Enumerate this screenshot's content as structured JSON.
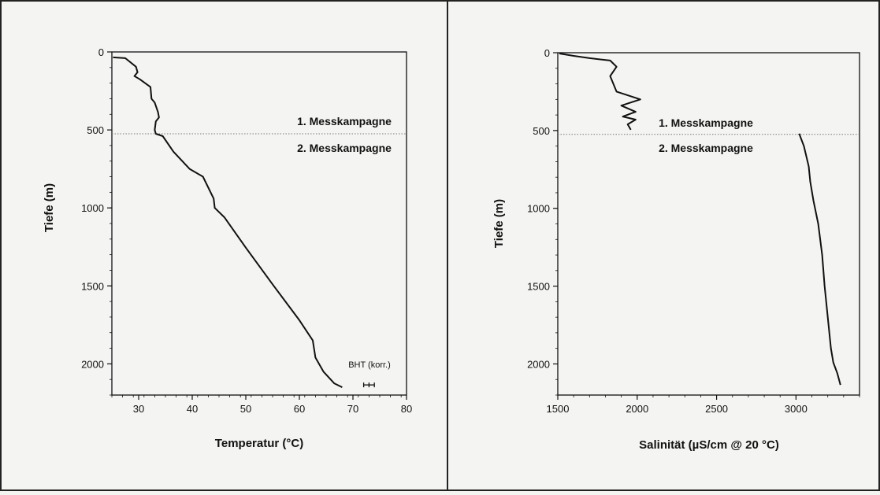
{
  "chart_data": [
    {
      "type": "line",
      "xlabel": "Temperatur (°C)",
      "ylabel": "Tiefe (m)",
      "xlim": [
        25,
        80
      ],
      "ylim": [
        0,
        2200
      ],
      "y_inverted": true,
      "xticks": [
        30,
        40,
        50,
        60,
        70,
        80
      ],
      "yticks": [
        0,
        500,
        1000,
        1500,
        2000
      ],
      "campaign_depth": 525,
      "campaign_labels": [
        "1. Messkampagne",
        "2. Messkampagne"
      ],
      "series": [
        {
          "points": [
            [
              25.2,
              35
            ],
            [
              27.5,
              40
            ],
            [
              29.5,
              95
            ],
            [
              29.8,
              130
            ],
            [
              29.2,
              155
            ],
            [
              30.2,
              175
            ],
            [
              32.2,
              225
            ],
            [
              32.4,
              300
            ],
            [
              33.0,
              325
            ],
            [
              33.6,
              385
            ],
            [
              33.8,
              420
            ],
            [
              33.2,
              445
            ],
            [
              33.0,
              500
            ],
            [
              33.2,
              525
            ],
            [
              34.5,
              540
            ],
            [
              36.5,
              640
            ],
            [
              39.5,
              750
            ],
            [
              42.0,
              800
            ],
            [
              44.0,
              940
            ],
            [
              44.2,
              1000
            ],
            [
              46.0,
              1060
            ],
            [
              50.0,
              1255
            ],
            [
              55.0,
              1490
            ],
            [
              60.0,
              1720
            ],
            [
              62.5,
              1850
            ],
            [
              63.0,
              1960
            ],
            [
              64.5,
              2050
            ],
            [
              66.5,
              2125
            ],
            [
              68.0,
              2150
            ]
          ]
        }
      ],
      "annotations": [
        {
          "text": "BHT (korr.)",
          "x": 71.5,
          "y": 2010
        },
        {
          "marker": "BHT",
          "x": 73.0,
          "y": 2135,
          "xerr": 1.0
        }
      ]
    },
    {
      "type": "line",
      "xlabel": "Salinität (µS/cm @ 20 °C)",
      "ylabel": "Tiefe (m)",
      "xlim": [
        1500,
        3400
      ],
      "ylim": [
        0,
        2200
      ],
      "y_inverted": true,
      "xticks": [
        1500,
        2000,
        2500,
        3000
      ],
      "yticks": [
        0,
        500,
        1000,
        1500,
        2000
      ],
      "campaign_depth": 525,
      "campaign_labels": [
        "1. Messkampagne",
        "2. Messkampagne"
      ],
      "series": [
        {
          "points": [
            [
              1510,
              5
            ],
            [
              1600,
              20
            ],
            [
              1700,
              35
            ],
            [
              1830,
              50
            ],
            [
              1870,
              90
            ],
            [
              1830,
              150
            ],
            [
              1870,
              250
            ],
            [
              2020,
              300
            ],
            [
              1900,
              340
            ],
            [
              1990,
              380
            ],
            [
              1910,
              410
            ],
            [
              1990,
              430
            ],
            [
              1940,
              460
            ],
            [
              1960,
              495
            ]
          ]
        },
        {
          "points": [
            [
              3020,
              520
            ],
            [
              3050,
              600
            ],
            [
              3080,
              730
            ],
            [
              3090,
              830
            ],
            [
              3110,
              950
            ],
            [
              3140,
              1100
            ],
            [
              3165,
              1300
            ],
            [
              3180,
              1500
            ],
            [
              3200,
              1700
            ],
            [
              3220,
              1900
            ],
            [
              3235,
              1990
            ],
            [
              3260,
              2060
            ],
            [
              3280,
              2135
            ]
          ]
        }
      ]
    }
  ]
}
